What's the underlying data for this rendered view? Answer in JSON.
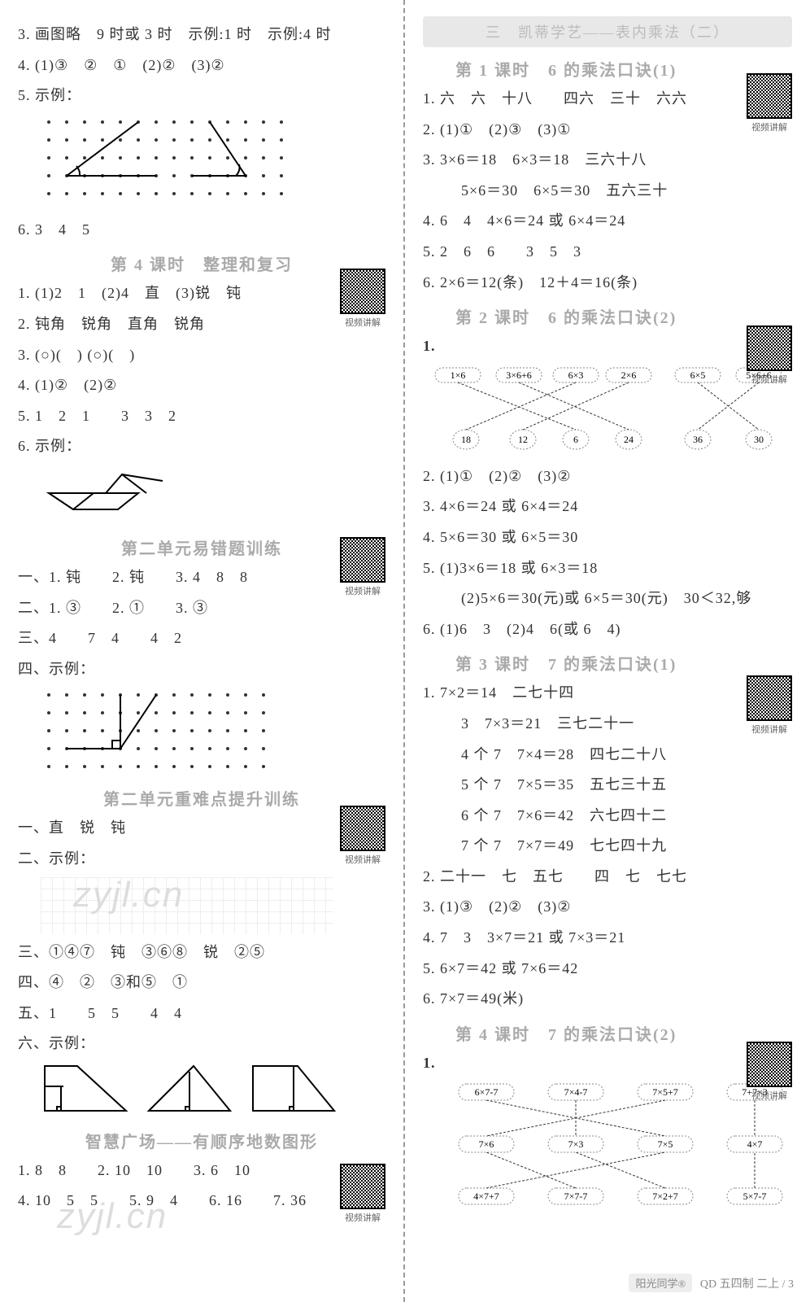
{
  "left": {
    "l3": "3. 画图略　9 时或 3 时　示例:1 时　示例:4 时",
    "l4": "4. (1)③　②　①　(2)②　(3)②",
    "l5": "5. 示例：",
    "l6": "6. 3　4　5",
    "s4_title": "第 4 课时　整理和复习",
    "s4_1": "1. (1)2　1　(2)4　直　(3)锐　钝",
    "s4_2": "2. 钝角　锐角　直角　锐角",
    "s4_3": "3. (○)(　) (○)(　)",
    "s4_4": "4. (1)②　(2)②",
    "s4_5": "5. 1　2　1　　3　3　2",
    "s4_6": "6. 示例：",
    "err_title": "第二单元易错题训练",
    "e1": "一、1. 钝　　2. 钝　　3. 4　8　8",
    "e2": "二、1. ③　　2. ①　　3. ③",
    "e3": "三、4　　7　4　　4　2",
    "e4": "四、示例：",
    "hard_title": "第二单元重难点提升训练",
    "h1": "一、直　锐　钝",
    "h2": "二、示例：",
    "h3": "三、①④⑦　钝　③⑥⑧　锐　②⑤",
    "h4": "四、④　②　③和⑤　①",
    "h5": "五、1　　5　5　　4　4",
    "h6": "六、示例：",
    "zh_title": "智慧广场——有顺序地数图形",
    "z1": "1. 8　8　　2. 10　10　　3. 6　10",
    "z2": "4. 10　5　5　　5. 9　4　　6. 16　　7. 36",
    "qr_label": "视频讲解"
  },
  "right": {
    "unit_banner": "三　凯蒂学艺——表内乘法（二）",
    "s1_title": "第 1 课时　6 的乘法口诀(1)",
    "s1_1": "1. 六　六　十八　　四六　三十　六六",
    "s1_2": "2. (1)①　(2)③　(3)①",
    "s1_3a": "3. 3×6＝18　6×3＝18　三六十八",
    "s1_3b": "　5×6＝30　6×5＝30　五六三十",
    "s1_4": "4. 6　4　4×6＝24 或 6×4＝24",
    "s1_5": "5. 2　6　6　　3　5　3",
    "s1_6": "6. 2×6＝12(条)　12＋4＝16(条)",
    "s2_title": "第 2 课时　6 的乘法口诀(2)",
    "match_top": [
      "1×6",
      "3×6+6",
      "6×3",
      "2×6",
      "6×5",
      "5×6+6"
    ],
    "match_bot": [
      "18",
      "12",
      "6",
      "24",
      "36",
      "30"
    ],
    "s2_2": "2. (1)①　(2)②　(3)②",
    "s2_3": "3. 4×6＝24 或 6×4＝24",
    "s2_4": "4. 5×6＝30 或 6×5＝30",
    "s2_5a": "5. (1)3×6＝18 或 6×3＝18",
    "s2_5b": "　(2)5×6＝30(元)或 6×5＝30(元)　30＜32,够",
    "s2_6": "6. (1)6　3　(2)4　6(或 6　4)",
    "s3_title": "第 3 课时　7 的乘法口诀(1)",
    "s3_1a": "1. 7×2＝14　二七十四",
    "s3_1b": "　3　7×3＝21　三七二十一",
    "s3_1c": "　4 个 7　7×4＝28　四七二十八",
    "s3_1d": "　5 个 7　7×5＝35　五七三十五",
    "s3_1e": "　6 个 7　7×6＝42　六七四十二",
    "s3_1f": "　7 个 7　7×7＝49　七七四十九",
    "s3_2": "2. 二十一　七　五七　　四　七　七七",
    "s3_3": "3. (1)③　(2)②　(3)②",
    "s3_4": "4. 7　3　3×7＝21 或 7×3＝21",
    "s3_5": "5. 6×7＝42 或 7×6＝42",
    "s3_6": "6. 7×7＝49(米)",
    "s4_title": "第 4 课时　7 的乘法口诀(2)",
    "match2_top": [
      "6×7-7",
      "7×4-7",
      "7×5+7",
      "7+7×3"
    ],
    "match2_mid": [
      "7×6",
      "7×3",
      "7×5",
      "4×7"
    ],
    "match2_bot": [
      "4×7+7",
      "7×7-7",
      "7×2+7",
      "5×7-7"
    ],
    "qr_label": "视频讲解",
    "footer_brand": "阳光同学®",
    "footer_text": "QD 五四制 二上 / 3"
  },
  "colors": {
    "text": "#333333",
    "grey": "#999999",
    "divider": "#999999",
    "qr_border": "#000000",
    "watermark": "#dddddd"
  }
}
